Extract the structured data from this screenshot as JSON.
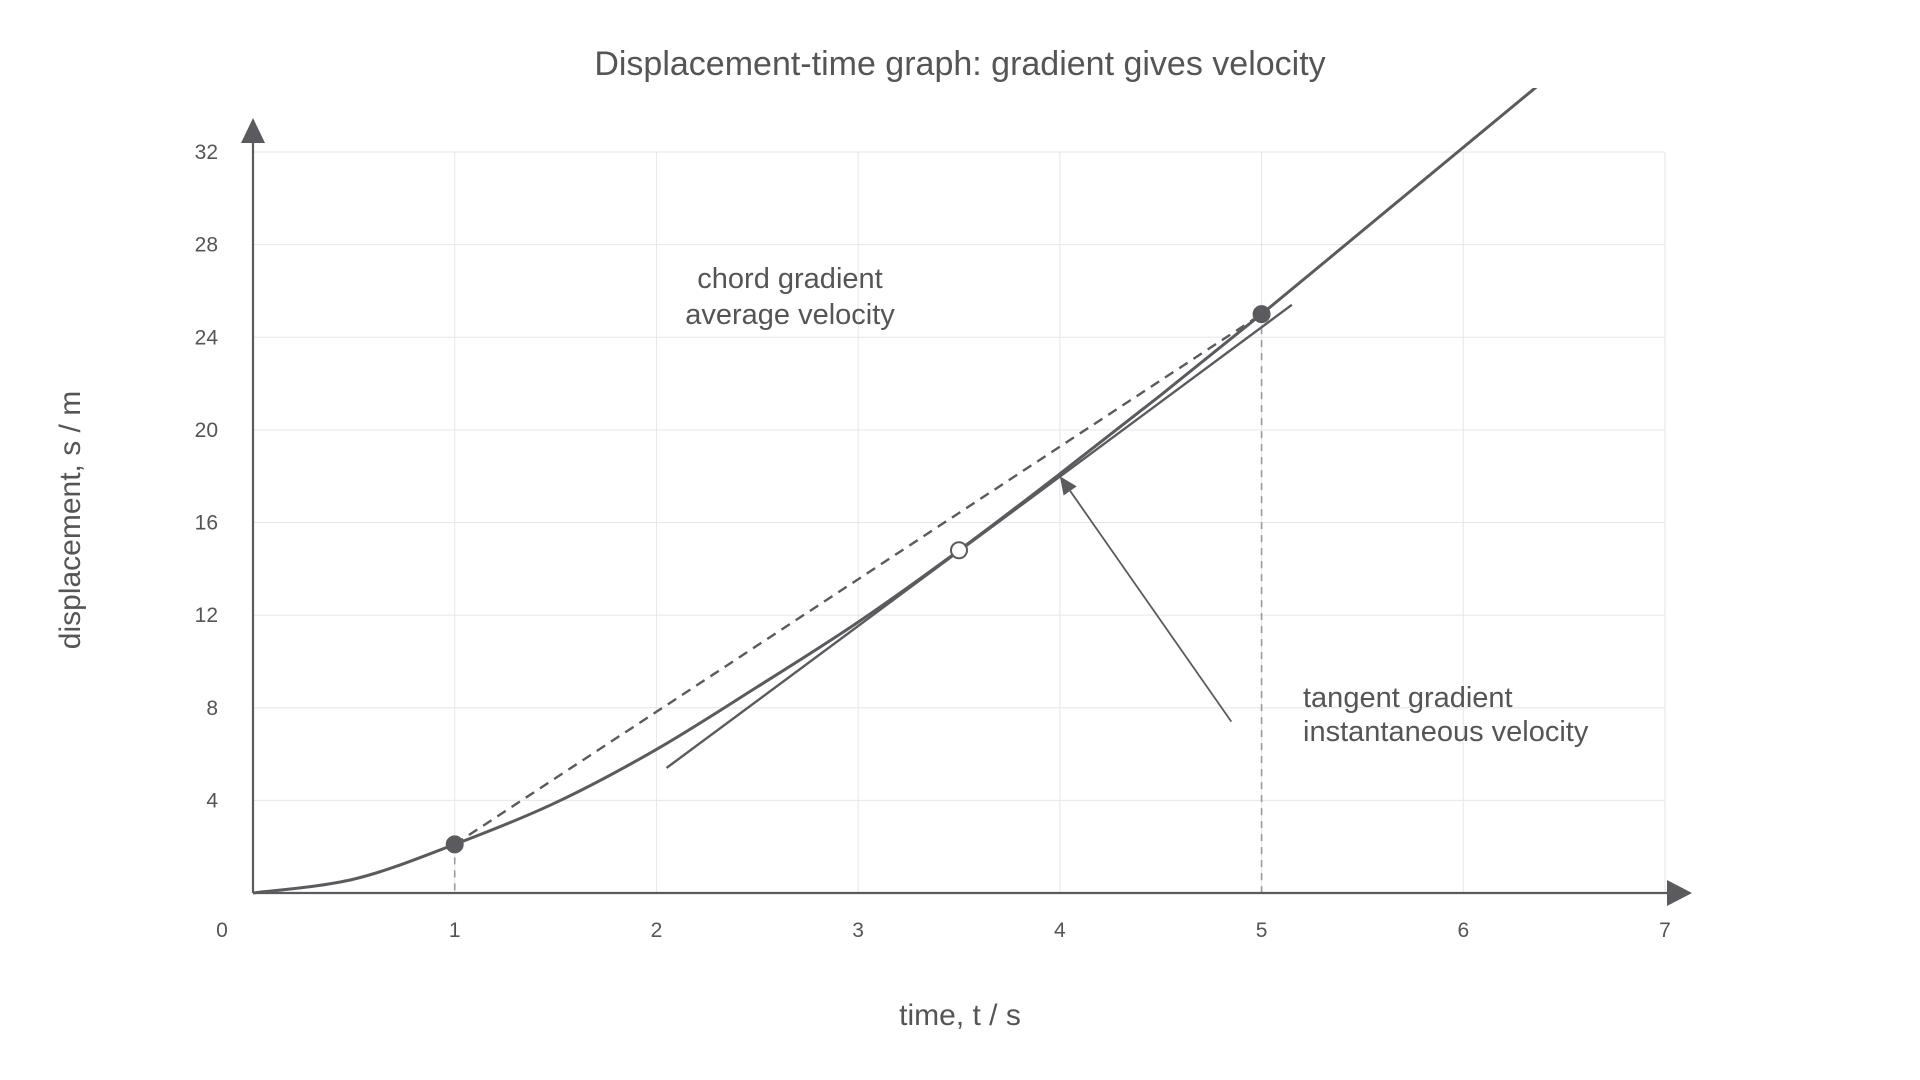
{
  "chart_data": {
    "type": "line",
    "title": "Displacement-time graph: gradient gives velocity",
    "xlabel": "time, t / s",
    "ylabel": "displacement, s / m",
    "xlim": [
      0,
      7
    ],
    "ylim": [
      0,
      32
    ],
    "x_ticks": [
      0,
      1,
      2,
      3,
      4,
      5,
      6,
      7
    ],
    "y_ticks": [
      4,
      8,
      12,
      16,
      20,
      24,
      28,
      32
    ],
    "grid": true,
    "series": [
      {
        "kind": "curve",
        "x": [
          0,
          0.5,
          1,
          1.5,
          2,
          2.5,
          3,
          3.5,
          4,
          4.5,
          5,
          5.5,
          6,
          6.5
        ],
        "y": [
          0,
          0.6,
          2.1,
          3.9,
          6.2,
          8.9,
          11.7,
          14.8,
          18.1,
          21.5,
          25.0,
          28.6,
          32.2,
          35.8
        ]
      },
      {
        "kind": "chord",
        "style": "dashed",
        "x": [
          1,
          5
        ],
        "y": [
          2.1,
          25.0
        ]
      },
      {
        "kind": "tangent",
        "style": "solid",
        "x": [
          2.05,
          5.15
        ],
        "y": [
          5.4,
          25.4
        ]
      }
    ],
    "points": [
      {
        "x": 1,
        "y": 2.1,
        "fill": "filled"
      },
      {
        "x": 5,
        "y": 25.0,
        "fill": "filled"
      },
      {
        "x": 3.5,
        "y": 14.8,
        "fill": "open"
      }
    ],
    "droplines": [
      {
        "x": 1,
        "y": 2.1
      },
      {
        "x": 5,
        "y": 25.0
      }
    ],
    "annotations": [
      {
        "id": "chord",
        "lines": [
          "chord gradient",
          "average velocity"
        ]
      },
      {
        "id": "tangent",
        "lines": [
          "tangent gradient",
          "instantaneous velocity"
        ]
      }
    ],
    "pointer": {
      "from": [
        4.85,
        7.4
      ],
      "to": [
        4.0,
        18.0
      ]
    },
    "colors": {
      "line": "#5b5b5f",
      "grid": "#e6e6e8",
      "text": "#555558",
      "dropline": "#9a9a9e"
    }
  }
}
